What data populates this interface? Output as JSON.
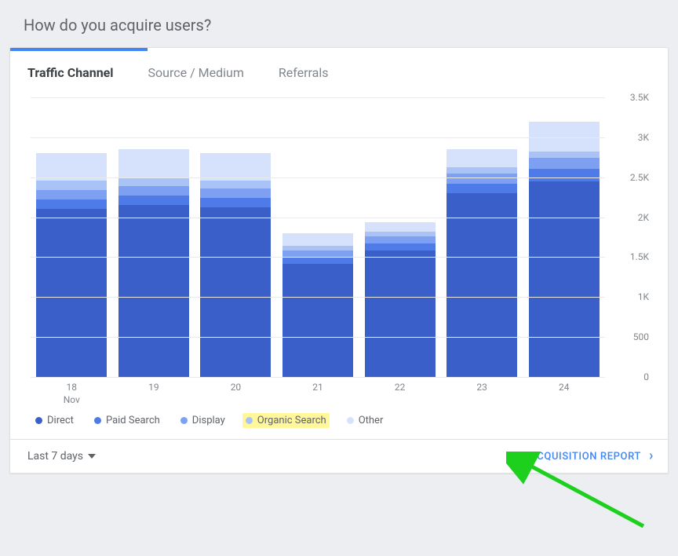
{
  "section": {
    "title": "How do you acquire users?"
  },
  "tabs": [
    {
      "label": "Traffic Channel",
      "active": true
    },
    {
      "label": "Source / Medium",
      "active": false
    },
    {
      "label": "Referrals",
      "active": false
    }
  ],
  "chart": {
    "type": "stacked-bar",
    "background_color": "#ffffff",
    "grid_color": "#e8eaed",
    "y": {
      "min": 0,
      "max": 3500,
      "ticks": [
        0,
        500,
        1000,
        1500,
        2000,
        2500,
        3000,
        3500
      ],
      "tick_labels": [
        "0",
        "500",
        "1K",
        "1.5K",
        "2K",
        "2.5K",
        "3K",
        "3.5K"
      ]
    },
    "x": {
      "labels": [
        "18",
        "19",
        "20",
        "21",
        "22",
        "23",
        "24"
      ],
      "sublabel_first": "Nov"
    },
    "series": [
      {
        "key": "direct",
        "label": "Direct",
        "color": "#3b5fc9"
      },
      {
        "key": "paid_search",
        "label": "Paid Search",
        "color": "#4e7be8"
      },
      {
        "key": "display",
        "label": "Display",
        "color": "#7da0f2"
      },
      {
        "key": "organic_search",
        "label": "Organic Search",
        "color": "#aac3f6",
        "highlight": "#fff79a"
      },
      {
        "key": "other",
        "label": "Other",
        "color": "#d6e2fb"
      }
    ],
    "data": [
      {
        "direct": 2100,
        "paid_search": 120,
        "display": 120,
        "organic_search": 120,
        "other": 340
      },
      {
        "direct": 2150,
        "paid_search": 120,
        "display": 120,
        "organic_search": 100,
        "other": 360
      },
      {
        "direct": 2120,
        "paid_search": 120,
        "display": 120,
        "organic_search": 100,
        "other": 340
      },
      {
        "direct": 1420,
        "paid_search": 80,
        "display": 80,
        "organic_search": 60,
        "other": 160
      },
      {
        "direct": 1580,
        "paid_search": 90,
        "display": 90,
        "organic_search": 60,
        "other": 120
      },
      {
        "direct": 2300,
        "paid_search": 120,
        "display": 130,
        "organic_search": 80,
        "other": 220
      },
      {
        "direct": 2450,
        "paid_search": 160,
        "display": 130,
        "organic_search": 80,
        "other": 380
      }
    ]
  },
  "footer": {
    "date_range_label": "Last 7 days",
    "link_label": "ACQUISITION REPORT"
  },
  "annotation_arrow": {
    "color": "#1ed01e"
  }
}
